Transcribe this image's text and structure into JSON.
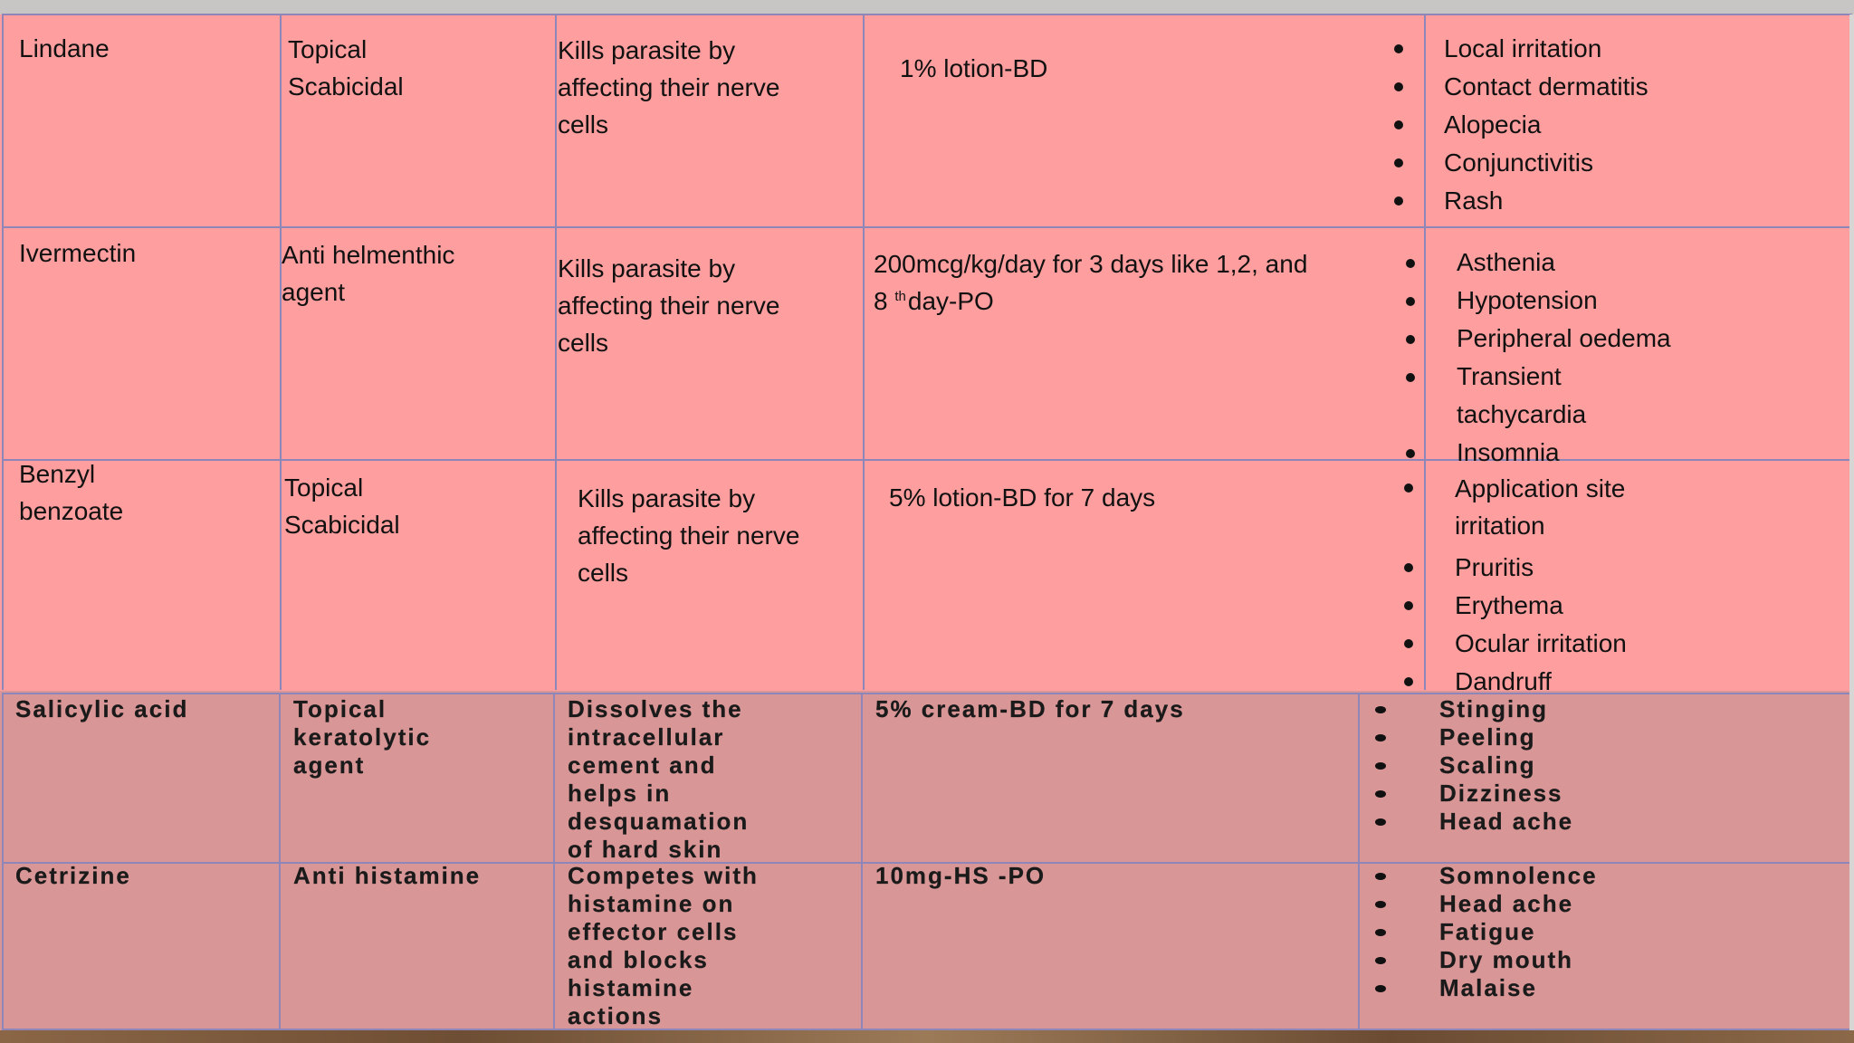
{
  "rows": [
    {
      "drug": [
        "Lindane"
      ],
      "class": [
        "Topical",
        "Scabicidal"
      ],
      "mechanism": [
        "Kills parasite by",
        "affecting their  nerve",
        "cells"
      ],
      "dose": "1% lotion-BD",
      "side_effects": [
        "Local irritation",
        "Contact dermatitis",
        "Alopecia",
        "Conjunctivitis",
        "Rash"
      ]
    },
    {
      "drug": [
        "Ivermectin"
      ],
      "class": [
        "Anti helmenthic",
        "agent"
      ],
      "mechanism": [
        "Kills parasite by",
        "affecting their  nerve",
        "cells"
      ],
      "dose_line1": "200mcg/kg/day for 3 days like  1,2, and",
      "dose_line2_num": "8",
      "dose_line2_sup": "th",
      "dose_line2_rest": "day-PO",
      "side_effects": [
        "Asthenia",
        "Hypotension",
        "Peripheral oedema",
        "Transient",
        "tachycardia",
        "Insomnia"
      ]
    },
    {
      "drug": [
        "Benzyl",
        "benzoate"
      ],
      "class": [
        "Topical",
        "Scabicidal"
      ],
      "mechanism": [
        "Kills parasite by",
        "affecting their  nerve",
        "cells"
      ],
      "dose": "5% lotion-BD for 7 days",
      "side_effects": [
        "Application site",
        "irritation",
        "Pruritis",
        "Erythema",
        "Ocular irritation",
        "Dandruff"
      ]
    },
    {
      "drug": [
        "Salicylic acid"
      ],
      "class": [
        "Topical",
        "keratolytic",
        "agent"
      ],
      "mechanism": [
        "Dissolves the",
        "intracellular",
        "cement and",
        "helps in",
        "desquamation",
        "of hard skin"
      ],
      "dose": "5% cream-BD for 7 days",
      "side_effects": [
        "Stinging",
        "Peeling",
        "Scaling",
        "Dizziness",
        "Head ache"
      ]
    },
    {
      "drug": [
        "Cetrizine"
      ],
      "class": [
        "Anti histamine"
      ],
      "mechanism": [
        "Competes with",
        "histamine on",
        "effector cells",
        "and blocks",
        "histamine",
        "actions"
      ],
      "dose": "10mg-HS -PO",
      "side_effects": [
        "Somnolence",
        "Head ache",
        "Fatigue",
        "Dry mouth",
        "Malaise"
      ]
    }
  ]
}
